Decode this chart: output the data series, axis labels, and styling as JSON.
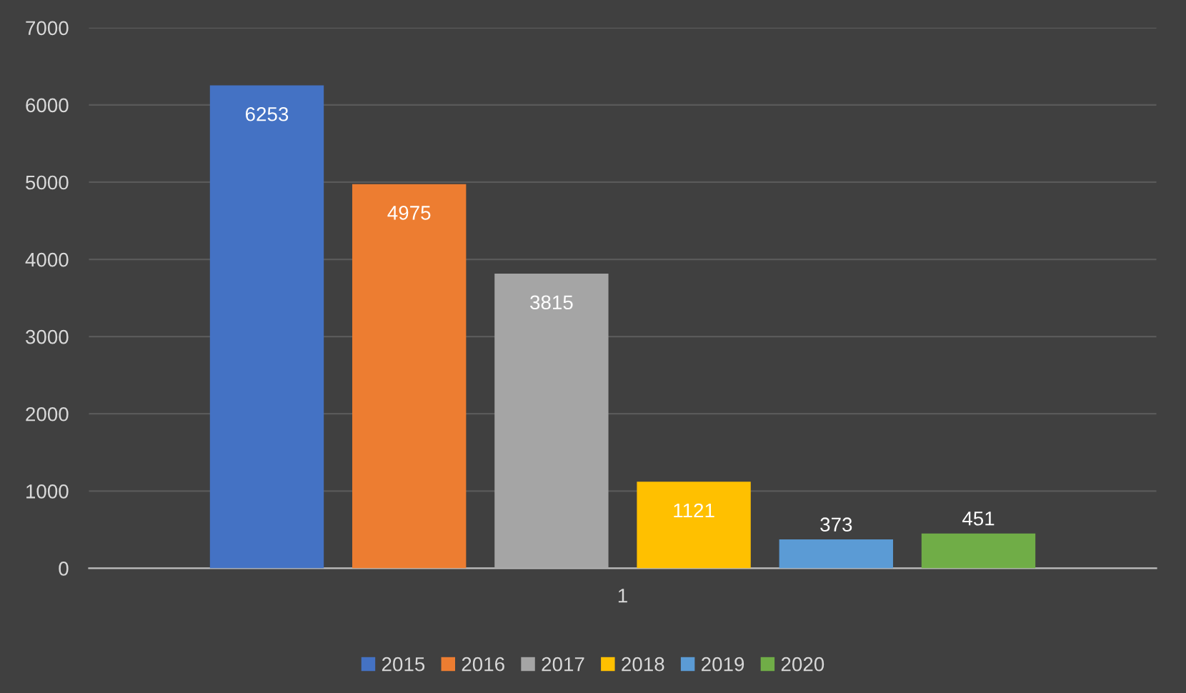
{
  "chart_data": {
    "type": "bar",
    "categories": [
      "1"
    ],
    "series": [
      {
        "name": "2015",
        "color": "#4472c4",
        "values": [
          6253
        ]
      },
      {
        "name": "2016",
        "color": "#ed7d31",
        "values": [
          4975
        ]
      },
      {
        "name": "2017",
        "color": "#a5a5a5",
        "values": [
          3815
        ]
      },
      {
        "name": "2018",
        "color": "#ffc000",
        "values": [
          1121
        ]
      },
      {
        "name": "2019",
        "color": "#5b9bd5",
        "values": [
          373
        ]
      },
      {
        "name": "2020",
        "color": "#70ad47",
        "values": [
          451
        ]
      }
    ],
    "ylim": [
      0,
      7000
    ],
    "yticks": [
      0,
      1000,
      2000,
      3000,
      4000,
      5000,
      6000,
      7000
    ],
    "grid": "y",
    "legend": "bottom",
    "data_labels": true
  }
}
